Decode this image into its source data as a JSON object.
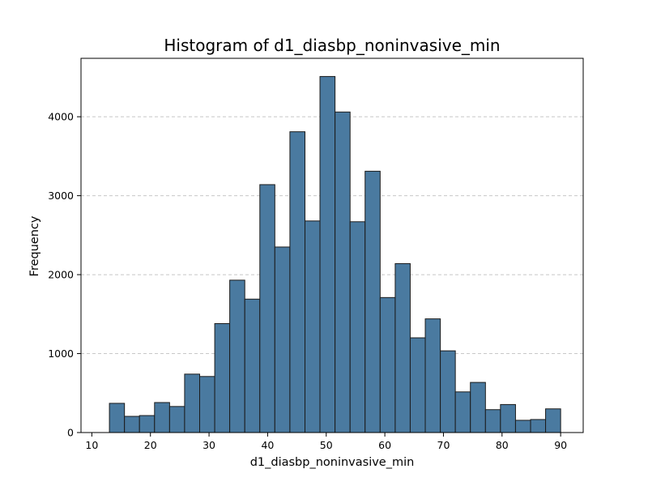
{
  "chart_data": {
    "type": "bar",
    "title": "Histogram of d1_diasbp_noninvasive_min",
    "xlabel": "d1_diasbp_noninvasive_min",
    "ylabel": "Frequency",
    "xlim": [
      8.15,
      93.85
    ],
    "ylim": [
      0,
      4740
    ],
    "x_ticks": [
      10,
      20,
      30,
      40,
      50,
      60,
      70,
      80,
      90
    ],
    "y_ticks": [
      0,
      1000,
      2000,
      3000,
      4000
    ],
    "grid": "y-dashed",
    "bar_color": "#4a7aa0",
    "edge_color": "#1b1b1b",
    "grid_color": "#c8c8c8",
    "bins": [
      {
        "x0": 13.0,
        "x1": 15.57,
        "value": 370
      },
      {
        "x0": 15.57,
        "x1": 18.13,
        "value": 205
      },
      {
        "x0": 18.13,
        "x1": 20.7,
        "value": 215
      },
      {
        "x0": 20.7,
        "x1": 23.27,
        "value": 380
      },
      {
        "x0": 23.27,
        "x1": 25.83,
        "value": 330
      },
      {
        "x0": 25.83,
        "x1": 28.4,
        "value": 740
      },
      {
        "x0": 28.4,
        "x1": 30.97,
        "value": 710
      },
      {
        "x0": 30.97,
        "x1": 33.53,
        "value": 1380
      },
      {
        "x0": 33.53,
        "x1": 36.1,
        "value": 1930
      },
      {
        "x0": 36.1,
        "x1": 38.67,
        "value": 1690
      },
      {
        "x0": 38.67,
        "x1": 41.23,
        "value": 3140
      },
      {
        "x0": 41.23,
        "x1": 43.8,
        "value": 2350
      },
      {
        "x0": 43.8,
        "x1": 46.37,
        "value": 3810
      },
      {
        "x0": 46.37,
        "x1": 48.93,
        "value": 2680
      },
      {
        "x0": 48.93,
        "x1": 51.5,
        "value": 4510
      },
      {
        "x0": 51.5,
        "x1": 54.07,
        "value": 4060
      },
      {
        "x0": 54.07,
        "x1": 56.63,
        "value": 2670
      },
      {
        "x0": 56.63,
        "x1": 59.2,
        "value": 3310
      },
      {
        "x0": 59.2,
        "x1": 61.77,
        "value": 1710
      },
      {
        "x0": 61.77,
        "x1": 64.33,
        "value": 2140
      },
      {
        "x0": 64.33,
        "x1": 66.9,
        "value": 1200
      },
      {
        "x0": 66.9,
        "x1": 69.47,
        "value": 1440
      },
      {
        "x0": 69.47,
        "x1": 72.03,
        "value": 1035
      },
      {
        "x0": 72.03,
        "x1": 74.6,
        "value": 515
      },
      {
        "x0": 74.6,
        "x1": 77.17,
        "value": 635
      },
      {
        "x0": 77.17,
        "x1": 79.73,
        "value": 290
      },
      {
        "x0": 79.73,
        "x1": 82.3,
        "value": 355
      },
      {
        "x0": 82.3,
        "x1": 84.87,
        "value": 155
      },
      {
        "x0": 84.87,
        "x1": 87.43,
        "value": 165
      },
      {
        "x0": 87.43,
        "x1": 90.0,
        "value": 300
      }
    ]
  }
}
